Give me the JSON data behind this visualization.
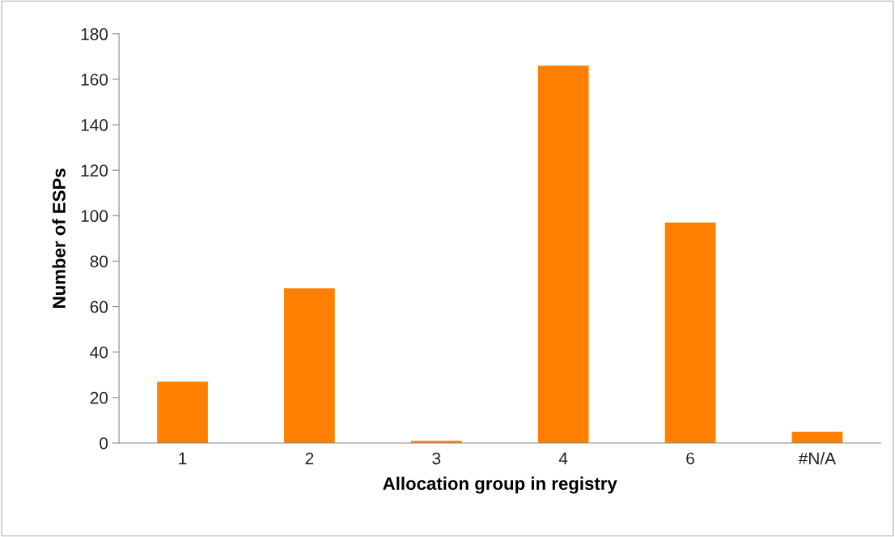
{
  "chart_data": {
    "type": "bar",
    "xlabel": "Allocation group in registry",
    "ylabel": "Number of ESPs",
    "categories": [
      "1",
      "2",
      "3",
      "4",
      "6",
      "#N/A"
    ],
    "values": [
      27,
      68,
      1,
      166,
      97,
      5
    ],
    "color": "#ff8000",
    "ylim": [
      0,
      180
    ],
    "yticks": [
      0,
      20,
      40,
      60,
      80,
      100,
      120,
      140,
      160,
      180
    ],
    "grid": false
  }
}
